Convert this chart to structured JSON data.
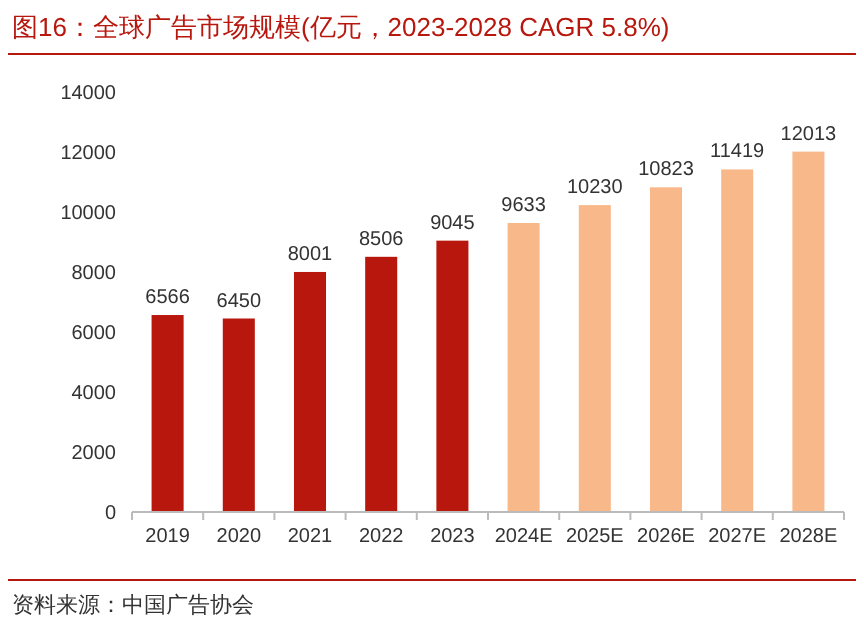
{
  "chart_data": {
    "type": "bar",
    "title": "图16：全球广告市场规模(亿元，2023-2028 CAGR 5.8%)",
    "categories": [
      "2019",
      "2020",
      "2021",
      "2022",
      "2023",
      "2024E",
      "2025E",
      "2026E",
      "2027E",
      "2028E"
    ],
    "values": [
      6566,
      6450,
      8001,
      8506,
      9045,
      9633,
      10230,
      10823,
      11419,
      12013
    ],
    "colors": [
      "#b8170e",
      "#b8170e",
      "#b8170e",
      "#b8170e",
      "#b8170e",
      "#f9b88a",
      "#f9b88a",
      "#f9b88a",
      "#f9b88a",
      "#f9b88a"
    ],
    "ylim": [
      0,
      14000
    ],
    "yticks": [
      0,
      2000,
      4000,
      6000,
      8000,
      10000,
      12000,
      14000
    ],
    "data_labels": true,
    "annotations": [
      "资料来源：中国广告协会"
    ]
  }
}
